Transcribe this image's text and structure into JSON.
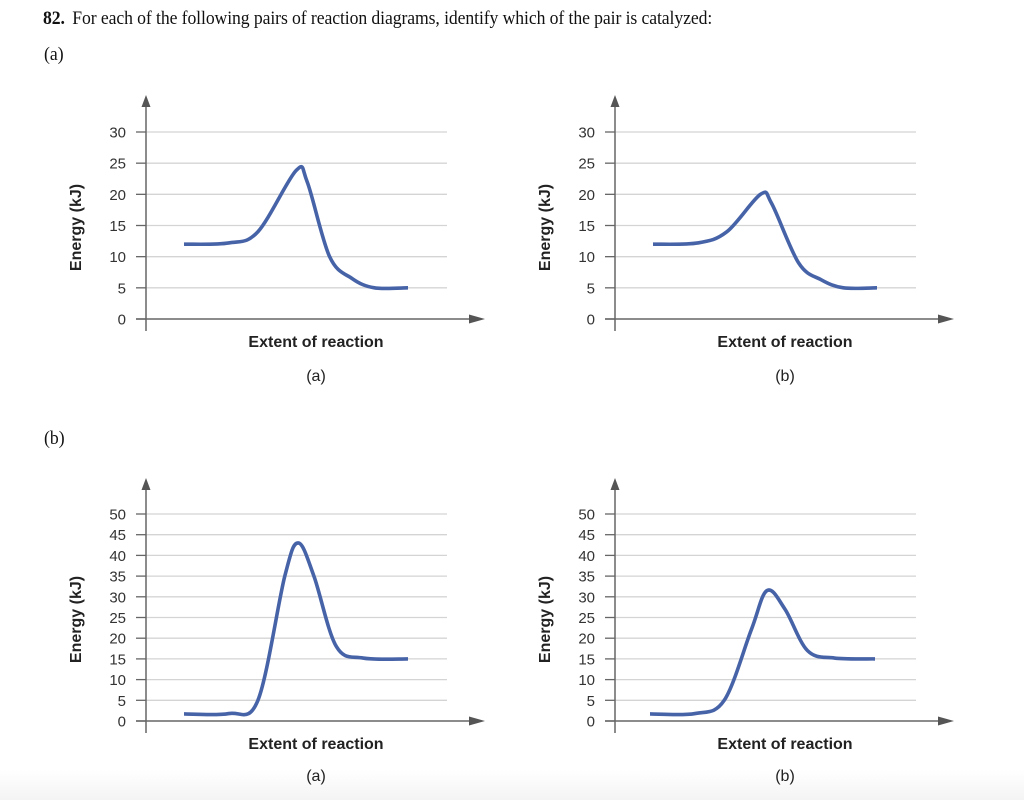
{
  "question": {
    "number": "82.",
    "text": "For each of the following pairs of reaction diagrams, identify which of the pair is catalyzed:"
  },
  "parts": [
    {
      "label": "(a)"
    },
    {
      "label": "(b)"
    }
  ],
  "colors": {
    "curve": "#4763a8",
    "axis": "#666666",
    "grid": "#d4d4d4"
  },
  "chart_data": [
    {
      "type": "line",
      "part": "(a)",
      "panel_label": "(a)",
      "title": "",
      "xlabel": "Extent of reaction",
      "ylabel": "Energy (kJ)",
      "ylim": [
        0,
        30
      ],
      "yticks": [
        0,
        5,
        10,
        15,
        20,
        25,
        30
      ],
      "grid": true,
      "series": [
        {
          "name": "energy",
          "x": [
            0,
            0.2,
            0.33,
            0.5,
            0.55,
            0.65,
            0.75,
            0.85,
            1.0
          ],
          "y": [
            12,
            12.2,
            14,
            23.8,
            22,
            10,
            6.5,
            5,
            5
          ]
        }
      ]
    },
    {
      "type": "line",
      "part": "(a)",
      "panel_label": "(b)",
      "title": "",
      "xlabel": "Extent of reaction",
      "ylabel": "Energy (kJ)",
      "ylim": [
        0,
        30
      ],
      "yticks": [
        0,
        5,
        10,
        15,
        20,
        25,
        30
      ],
      "grid": true,
      "series": [
        {
          "name": "energy",
          "x": [
            0,
            0.2,
            0.33,
            0.48,
            0.53,
            0.65,
            0.75,
            0.85,
            1.0
          ],
          "y": [
            12,
            12.2,
            14,
            20,
            18.5,
            9,
            6.3,
            5,
            5
          ]
        }
      ]
    },
    {
      "type": "line",
      "part": "(b)",
      "panel_label": "(a)",
      "title": "",
      "xlabel": "Extent of reaction",
      "ylabel": "Energy (kJ)",
      "ylim": [
        0,
        50
      ],
      "yticks": [
        0,
        5,
        10,
        15,
        20,
        25,
        30,
        35,
        40,
        45,
        50
      ],
      "grid": true,
      "series": [
        {
          "name": "energy",
          "x": [
            0,
            0.2,
            0.33,
            0.45,
            0.51,
            0.58,
            0.68,
            0.8,
            1.0
          ],
          "y": [
            1.7,
            1.8,
            5,
            35,
            43,
            35,
            18,
            15.2,
            15
          ]
        }
      ]
    },
    {
      "type": "line",
      "part": "(b)",
      "panel_label": "(b)",
      "title": "",
      "xlabel": "Extent of reaction",
      "ylabel": "Energy (kJ)",
      "ylim": [
        0,
        50
      ],
      "yticks": [
        0,
        5,
        10,
        15,
        20,
        25,
        30,
        35,
        40,
        45,
        50
      ],
      "grid": true,
      "series": [
        {
          "name": "energy",
          "x": [
            0,
            0.2,
            0.33,
            0.45,
            0.52,
            0.6,
            0.7,
            0.82,
            1.0
          ],
          "y": [
            1.7,
            1.8,
            5,
            22,
            31.5,
            27,
            17,
            15.2,
            15
          ]
        }
      ]
    }
  ]
}
